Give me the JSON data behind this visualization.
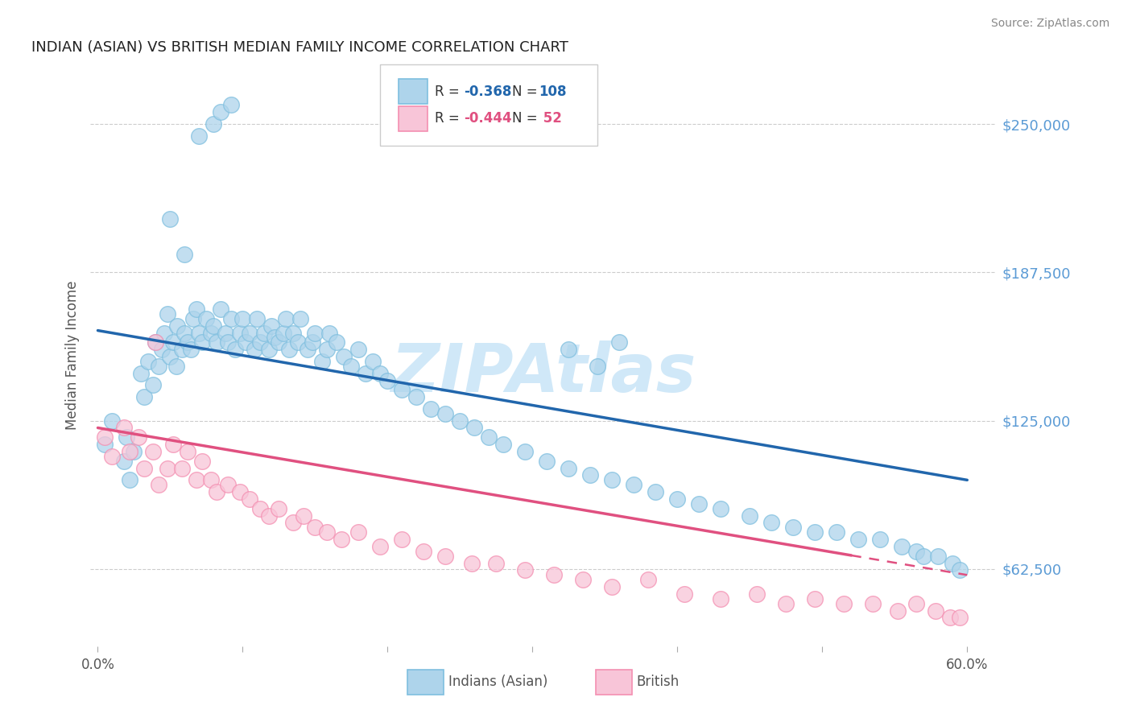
{
  "title": "INDIAN (ASIAN) VS BRITISH MEDIAN FAMILY INCOME CORRELATION CHART",
  "source": "Source: ZipAtlas.com",
  "ylabel": "Median Family Income",
  "xlim": [
    -0.005,
    0.62
  ],
  "ylim": [
    30000,
    275000
  ],
  "yticks": [
    62500,
    125000,
    187500,
    250000
  ],
  "ytick_labels": [
    "$62,500",
    "$125,000",
    "$187,500",
    "$250,000"
  ],
  "xticks": [
    0.0,
    0.1,
    0.2,
    0.3,
    0.4,
    0.5,
    0.6
  ],
  "xtick_labels": [
    "0.0%",
    "",
    "",
    "",
    "",
    "",
    "60.0%"
  ],
  "blue_color": "#7fbfdf",
  "blue_fill": "#aed4eb",
  "pink_color": "#f48fb1",
  "pink_fill": "#f8c5d8",
  "trend_blue": "#2166ac",
  "trend_pink": "#e05080",
  "watermark_color": "#d0e8f8",
  "blue_trend_x0": 0.0,
  "blue_trend_y0": 163000,
  "blue_trend_x1": 0.6,
  "blue_trend_y1": 100000,
  "pink_trend_x0": 0.0,
  "pink_trend_y0": 122000,
  "pink_trend_x1": 0.6,
  "pink_trend_y1": 60000,
  "indianAsianX": [
    0.005,
    0.01,
    0.018,
    0.02,
    0.022,
    0.025,
    0.03,
    0.032,
    0.035,
    0.038,
    0.04,
    0.042,
    0.044,
    0.046,
    0.048,
    0.05,
    0.052,
    0.054,
    0.055,
    0.058,
    0.06,
    0.062,
    0.064,
    0.066,
    0.068,
    0.07,
    0.072,
    0.075,
    0.078,
    0.08,
    0.082,
    0.085,
    0.088,
    0.09,
    0.092,
    0.095,
    0.098,
    0.1,
    0.102,
    0.105,
    0.108,
    0.11,
    0.112,
    0.115,
    0.118,
    0.12,
    0.122,
    0.125,
    0.128,
    0.13,
    0.132,
    0.135,
    0.138,
    0.14,
    0.145,
    0.148,
    0.15,
    0.155,
    0.158,
    0.16,
    0.165,
    0.17,
    0.175,
    0.18,
    0.185,
    0.19,
    0.195,
    0.2,
    0.21,
    0.22,
    0.23,
    0.24,
    0.25,
    0.26,
    0.27,
    0.28,
    0.295,
    0.31,
    0.325,
    0.34,
    0.355,
    0.37,
    0.385,
    0.4,
    0.415,
    0.43,
    0.45,
    0.465,
    0.48,
    0.495,
    0.51,
    0.525,
    0.54,
    0.555,
    0.565,
    0.57,
    0.58,
    0.59,
    0.595,
    0.325,
    0.345,
    0.36,
    0.05,
    0.06,
    0.07,
    0.08,
    0.085,
    0.092
  ],
  "indianAsianY": [
    115000,
    125000,
    108000,
    118000,
    100000,
    112000,
    145000,
    135000,
    150000,
    140000,
    158000,
    148000,
    155000,
    162000,
    170000,
    152000,
    158000,
    148000,
    165000,
    155000,
    162000,
    158000,
    155000,
    168000,
    172000,
    162000,
    158000,
    168000,
    162000,
    165000,
    158000,
    172000,
    162000,
    158000,
    168000,
    155000,
    162000,
    168000,
    158000,
    162000,
    155000,
    168000,
    158000,
    162000,
    155000,
    165000,
    160000,
    158000,
    162000,
    168000,
    155000,
    162000,
    158000,
    168000,
    155000,
    158000,
    162000,
    150000,
    155000,
    162000,
    158000,
    152000,
    148000,
    155000,
    145000,
    150000,
    145000,
    142000,
    138000,
    135000,
    130000,
    128000,
    125000,
    122000,
    118000,
    115000,
    112000,
    108000,
    105000,
    102000,
    100000,
    98000,
    95000,
    92000,
    90000,
    88000,
    85000,
    82000,
    80000,
    78000,
    78000,
    75000,
    75000,
    72000,
    70000,
    68000,
    68000,
    65000,
    62000,
    155000,
    148000,
    158000,
    210000,
    195000,
    245000,
    250000,
    255000,
    258000
  ],
  "britishX": [
    0.005,
    0.01,
    0.018,
    0.022,
    0.028,
    0.032,
    0.038,
    0.042,
    0.048,
    0.052,
    0.058,
    0.062,
    0.068,
    0.072,
    0.078,
    0.082,
    0.09,
    0.098,
    0.105,
    0.112,
    0.118,
    0.125,
    0.135,
    0.142,
    0.15,
    0.158,
    0.168,
    0.18,
    0.195,
    0.21,
    0.225,
    0.24,
    0.258,
    0.275,
    0.295,
    0.315,
    0.335,
    0.355,
    0.38,
    0.405,
    0.43,
    0.455,
    0.475,
    0.495,
    0.515,
    0.535,
    0.552,
    0.565,
    0.578,
    0.588,
    0.595,
    0.04
  ],
  "britishY": [
    118000,
    110000,
    122000,
    112000,
    118000,
    105000,
    112000,
    98000,
    105000,
    115000,
    105000,
    112000,
    100000,
    108000,
    100000,
    95000,
    98000,
    95000,
    92000,
    88000,
    85000,
    88000,
    82000,
    85000,
    80000,
    78000,
    75000,
    78000,
    72000,
    75000,
    70000,
    68000,
    65000,
    65000,
    62000,
    60000,
    58000,
    55000,
    58000,
    52000,
    50000,
    52000,
    48000,
    50000,
    48000,
    48000,
    45000,
    48000,
    45000,
    42000,
    42000,
    158000
  ]
}
